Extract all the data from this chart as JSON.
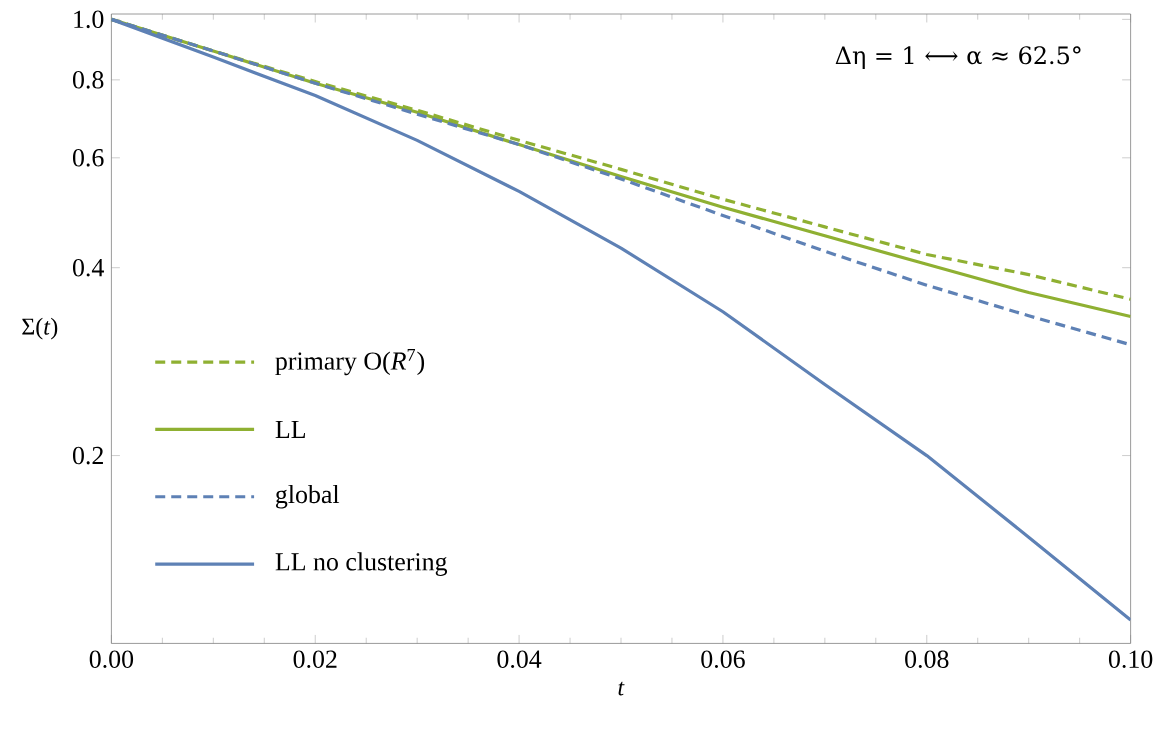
{
  "chart_data": {
    "type": "line",
    "xlabel": "*t*",
    "ylabel": "Σ(*t*)",
    "log": "y",
    "annotations": [
      "Δη = 1 ⟷ α ≈ 62.5°"
    ],
    "x": [
      0,
      0.01,
      0.02,
      0.03,
      0.04,
      0.05,
      0.06,
      0.07,
      0.08,
      0.09,
      0.1
    ],
    "series": [
      {
        "name": "primary O(*R*$^{7}$)",
        "color": "#8fb032",
        "line_style": "dashed",
        "values": [
          1.0,
          0.89,
          0.795,
          0.715,
          0.64,
          0.575,
          0.515,
          0.465,
          0.42,
          0.39,
          0.356
        ]
      },
      {
        "name": "LL",
        "color": "#8fb032",
        "line_style": "solid",
        "values": [
          1.0,
          0.89,
          0.79,
          0.71,
          0.63,
          0.56,
          0.5,
          0.45,
          0.405,
          0.365,
          0.334
        ]
      },
      {
        "name": "global",
        "color": "#5e81b5",
        "line_style": "dashed",
        "values": [
          1.0,
          0.89,
          0.79,
          0.705,
          0.63,
          0.555,
          0.485,
          0.425,
          0.375,
          0.335,
          0.301
        ]
      },
      {
        "name": "LL no clustering",
        "color": "#5e81b5",
        "line_style": "solid",
        "values": [
          1.0,
          0.87,
          0.755,
          0.64,
          0.53,
          0.43,
          0.34,
          0.26,
          0.2,
          0.148,
          0.109
        ]
      }
    ],
    "xlim": [
      0,
      0.1
    ],
    "ylim": [
      0.1,
      1.02
    ],
    "xticks": [
      {
        "value": 0,
        "label": "0.00"
      },
      {
        "value": 0.02,
        "label": "0.02"
      },
      {
        "value": 0.04,
        "label": "0.04"
      },
      {
        "value": 0.06,
        "label": "0.06"
      },
      {
        "value": 0.08,
        "label": "0.08"
      },
      {
        "value": 0.1,
        "label": "0.10"
      }
    ],
    "yticks": [
      0.2,
      0.4,
      0.6,
      0.8,
      {
        "value": 1.0,
        "label": "1.0"
      }
    ],
    "legend": "left",
    "grid": false
  }
}
